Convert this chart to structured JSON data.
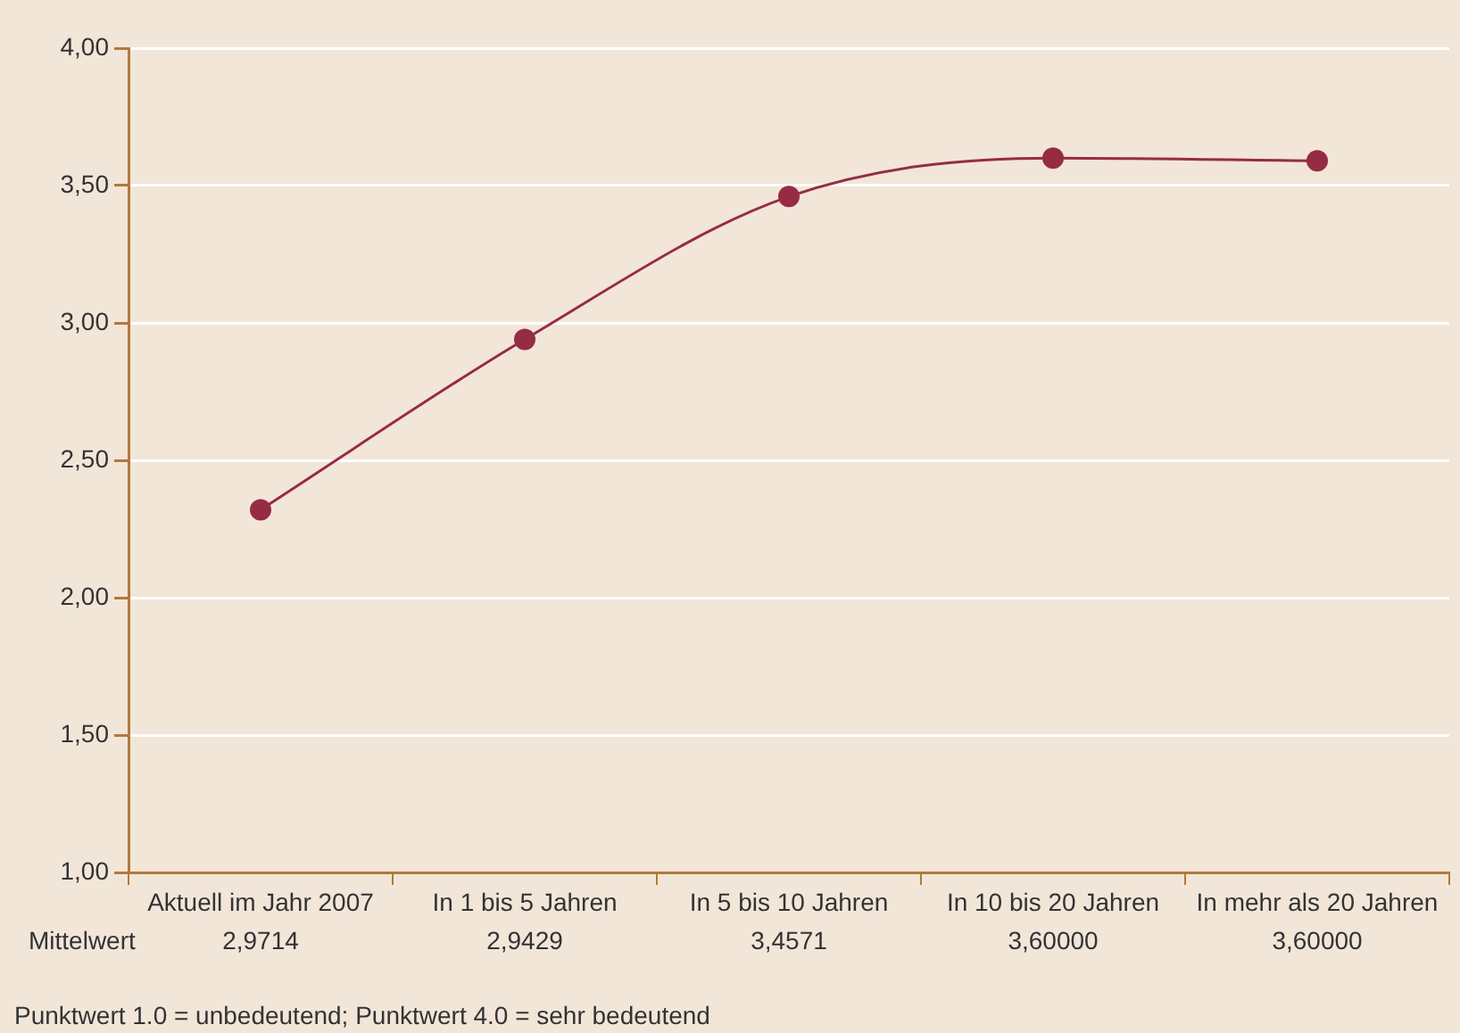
{
  "chart_data": {
    "type": "line",
    "categories": [
      "Aktuell im Jahr 2007",
      "In 1 bis 5 Jahren",
      "In 5 bis 10 Jahren",
      "In 10 bis 20 Jahren",
      "In mehr als 20 Jahren"
    ],
    "series": [
      {
        "color": "#962c44",
        "values": [
          2.32,
          2.94,
          3.46,
          3.6,
          3.59
        ]
      }
    ],
    "ylim": [
      1,
      4
    ],
    "yticks": [
      {
        "value": 1,
        "label": "1,00"
      },
      {
        "value": 1.5,
        "label": "1,50"
      },
      {
        "value": 2,
        "label": "2,00"
      },
      {
        "value": 2.5,
        "label": "2,50"
      },
      {
        "value": 3,
        "label": "3,00"
      },
      {
        "value": 3.5,
        "label": "3,50"
      },
      {
        "value": 4,
        "label": "4,00"
      }
    ],
    "grid": "y",
    "marker": "circle",
    "line_style": "solid",
    "legend": false,
    "annotations": [
      "Mittelwert",
      "2,9714",
      "2,9429",
      "3,4571",
      "3,60000",
      "3,60000",
      "Punktwert 1.0 = unbedeutend; Punktwert 4.0 = sehr bedeutend"
    ]
  }
}
